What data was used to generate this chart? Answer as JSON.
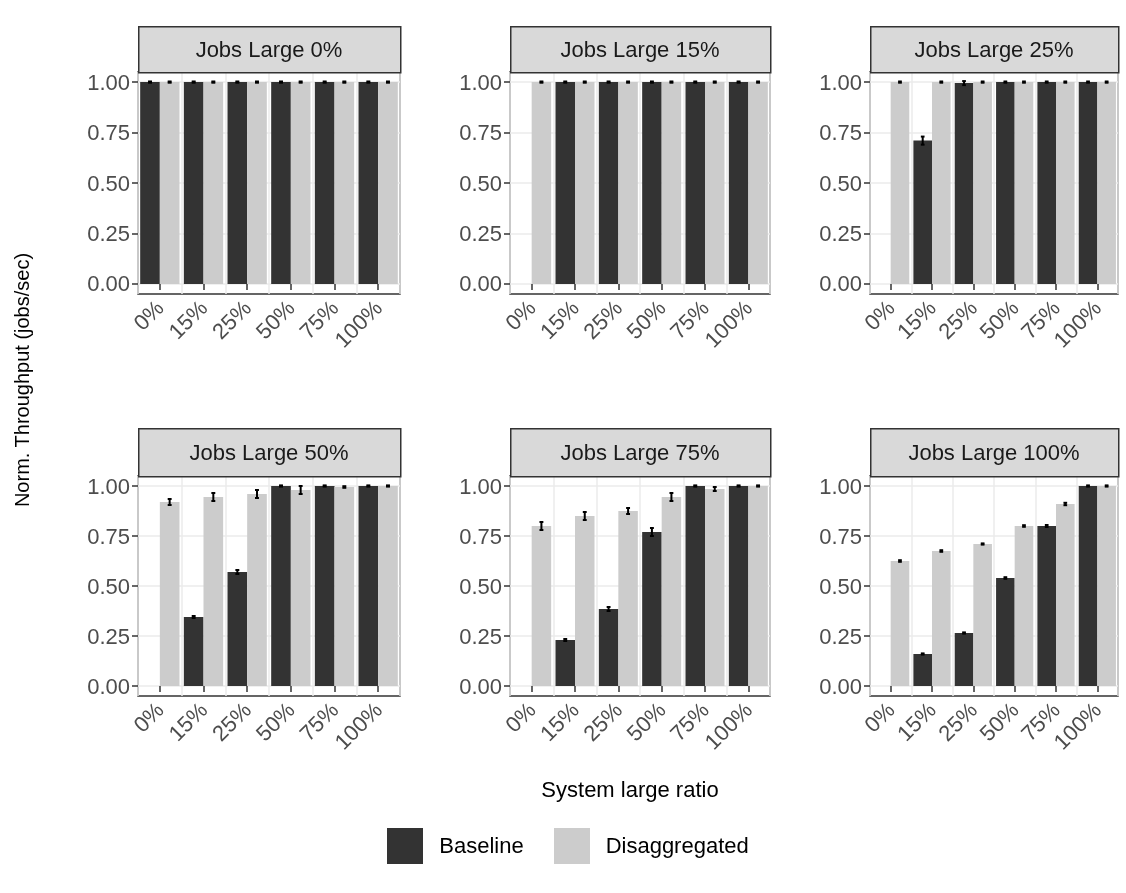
{
  "chart_data": [
    {
      "type": "bar",
      "title": "Jobs Large 0%",
      "ylabel": "Norm. Throughput (jobs/sec)",
      "legend": "bottom",
      "grid": true,
      "categories": [
        "0%",
        "15%",
        "25%",
        "50%",
        "75%",
        "100%"
      ],
      "ylim": [
        -0.05,
        1.05
      ],
      "yticks": [
        {
          "value": 0,
          "label": "0.00"
        },
        {
          "value": 0.25,
          "label": "0.25"
        },
        {
          "value": 0.5,
          "label": "0.50"
        },
        {
          "value": 0.75,
          "label": "0.75"
        },
        {
          "value": 1,
          "label": "1.00"
        }
      ],
      "series": [
        {
          "name": "Baseline",
          "color": "#333333",
          "values": [
            1,
            1,
            1,
            1,
            1,
            1
          ],
          "errors": [
            0.003,
            0.003,
            0.003,
            0.003,
            0.003,
            0.003
          ]
        },
        {
          "name": "Disaggregated",
          "color": "#cccccc",
          "values": [
            1,
            1,
            1,
            1,
            1,
            1
          ],
          "errors": [
            0.003,
            0.003,
            0.003,
            0.003,
            0.003,
            0.003
          ]
        }
      ]
    },
    {
      "type": "bar",
      "title": "Jobs Large 15%",
      "grid": true,
      "categories": [
        "0%",
        "15%",
        "25%",
        "50%",
        "75%",
        "100%"
      ],
      "ylim": [
        -0.05,
        1.05
      ],
      "yticks": [
        {
          "value": 0,
          "label": "0.00"
        },
        {
          "value": 0.25,
          "label": "0.25"
        },
        {
          "value": 0.5,
          "label": "0.50"
        },
        {
          "value": 0.75,
          "label": "0.75"
        },
        {
          "value": 1,
          "label": "1.00"
        }
      ],
      "series": [
        {
          "color": "#333333",
          "values": [
            null,
            1,
            1,
            1,
            1,
            1
          ],
          "errors": [
            null,
            0.003,
            0.003,
            0.003,
            0.003,
            0.003
          ]
        },
        {
          "color": "#cccccc",
          "values": [
            1,
            1,
            1,
            1,
            1,
            1
          ],
          "errors": [
            0.003,
            0.003,
            0.003,
            0.003,
            0.003,
            0.003
          ]
        }
      ]
    },
    {
      "type": "bar",
      "title": "Jobs Large 25%",
      "grid": true,
      "categories": [
        "0%",
        "15%",
        "25%",
        "50%",
        "75%",
        "100%"
      ],
      "ylim": [
        -0.05,
        1.05
      ],
      "yticks": [
        {
          "value": 0,
          "label": "0.00"
        },
        {
          "value": 0.25,
          "label": "0.25"
        },
        {
          "value": 0.5,
          "label": "0.50"
        },
        {
          "value": 0.75,
          "label": "0.75"
        },
        {
          "value": 1,
          "label": "1.00"
        }
      ],
      "series": [
        {
          "color": "#333333",
          "values": [
            null,
            0.71,
            0.995,
            1,
            1,
            1
          ],
          "errors": [
            null,
            0.02,
            0.01,
            0.003,
            0.003,
            0.003
          ]
        },
        {
          "color": "#cccccc",
          "values": [
            1,
            1,
            1,
            1,
            1,
            1
          ],
          "errors": [
            0.003,
            0.003,
            0.003,
            0.003,
            0.003,
            0.003
          ]
        }
      ]
    },
    {
      "type": "bar",
      "title": "Jobs Large 50%",
      "grid": true,
      "categories": [
        "0%",
        "15%",
        "25%",
        "50%",
        "75%",
        "100%"
      ],
      "ylim": [
        -0.05,
        1.05
      ],
      "yticks": [
        {
          "value": 0,
          "label": "0.00"
        },
        {
          "value": 0.25,
          "label": "0.25"
        },
        {
          "value": 0.5,
          "label": "0.50"
        },
        {
          "value": 0.75,
          "label": "0.75"
        },
        {
          "value": 1,
          "label": "1.00"
        }
      ],
      "series": [
        {
          "color": "#333333",
          "values": [
            null,
            0.345,
            0.57,
            1,
            1,
            1
          ],
          "errors": [
            null,
            0.005,
            0.01,
            0.003,
            0.003,
            0.003
          ]
        },
        {
          "color": "#cccccc",
          "values": [
            0.92,
            0.945,
            0.96,
            0.98,
            0.995,
            1
          ],
          "errors": [
            0.015,
            0.02,
            0.02,
            0.02,
            0.004,
            0.003
          ]
        }
      ]
    },
    {
      "type": "bar",
      "title": "Jobs Large 75%",
      "xlabel": "System large ratio",
      "grid": true,
      "categories": [
        "0%",
        "15%",
        "25%",
        "50%",
        "75%",
        "100%"
      ],
      "ylim": [
        -0.05,
        1.05
      ],
      "yticks": [
        {
          "value": 0,
          "label": "0.00"
        },
        {
          "value": 0.25,
          "label": "0.25"
        },
        {
          "value": 0.5,
          "label": "0.50"
        },
        {
          "value": 0.75,
          "label": "0.75"
        },
        {
          "value": 1,
          "label": "1.00"
        }
      ],
      "series": [
        {
          "color": "#333333",
          "values": [
            null,
            0.23,
            0.385,
            0.77,
            1,
            1
          ],
          "errors": [
            null,
            0.005,
            0.01,
            0.02,
            0.003,
            0.003
          ]
        },
        {
          "color": "#cccccc",
          "values": [
            0.8,
            0.85,
            0.875,
            0.945,
            0.985,
            1
          ],
          "errors": [
            0.02,
            0.02,
            0.015,
            0.02,
            0.01,
            0.003
          ]
        }
      ]
    },
    {
      "type": "bar",
      "title": "Jobs Large 100%",
      "grid": true,
      "categories": [
        "0%",
        "15%",
        "25%",
        "50%",
        "75%",
        "100%"
      ],
      "ylim": [
        -0.05,
        1.05
      ],
      "yticks": [
        {
          "value": 0,
          "label": "0.00"
        },
        {
          "value": 0.25,
          "label": "0.25"
        },
        {
          "value": 0.5,
          "label": "0.50"
        },
        {
          "value": 0.75,
          "label": "0.75"
        },
        {
          "value": 1,
          "label": "1.00"
        }
      ],
      "series": [
        {
          "color": "#333333",
          "values": [
            null,
            0.16,
            0.265,
            0.54,
            0.8,
            1
          ],
          "errors": [
            null,
            0.003,
            0.003,
            0.004,
            0.005,
            0.003
          ]
        },
        {
          "color": "#cccccc",
          "values": [
            0.625,
            0.675,
            0.71,
            0.8,
            0.91,
            1
          ],
          "errors": [
            0.004,
            0.004,
            0.003,
            0.004,
            0.006,
            0.003
          ]
        }
      ]
    }
  ]
}
